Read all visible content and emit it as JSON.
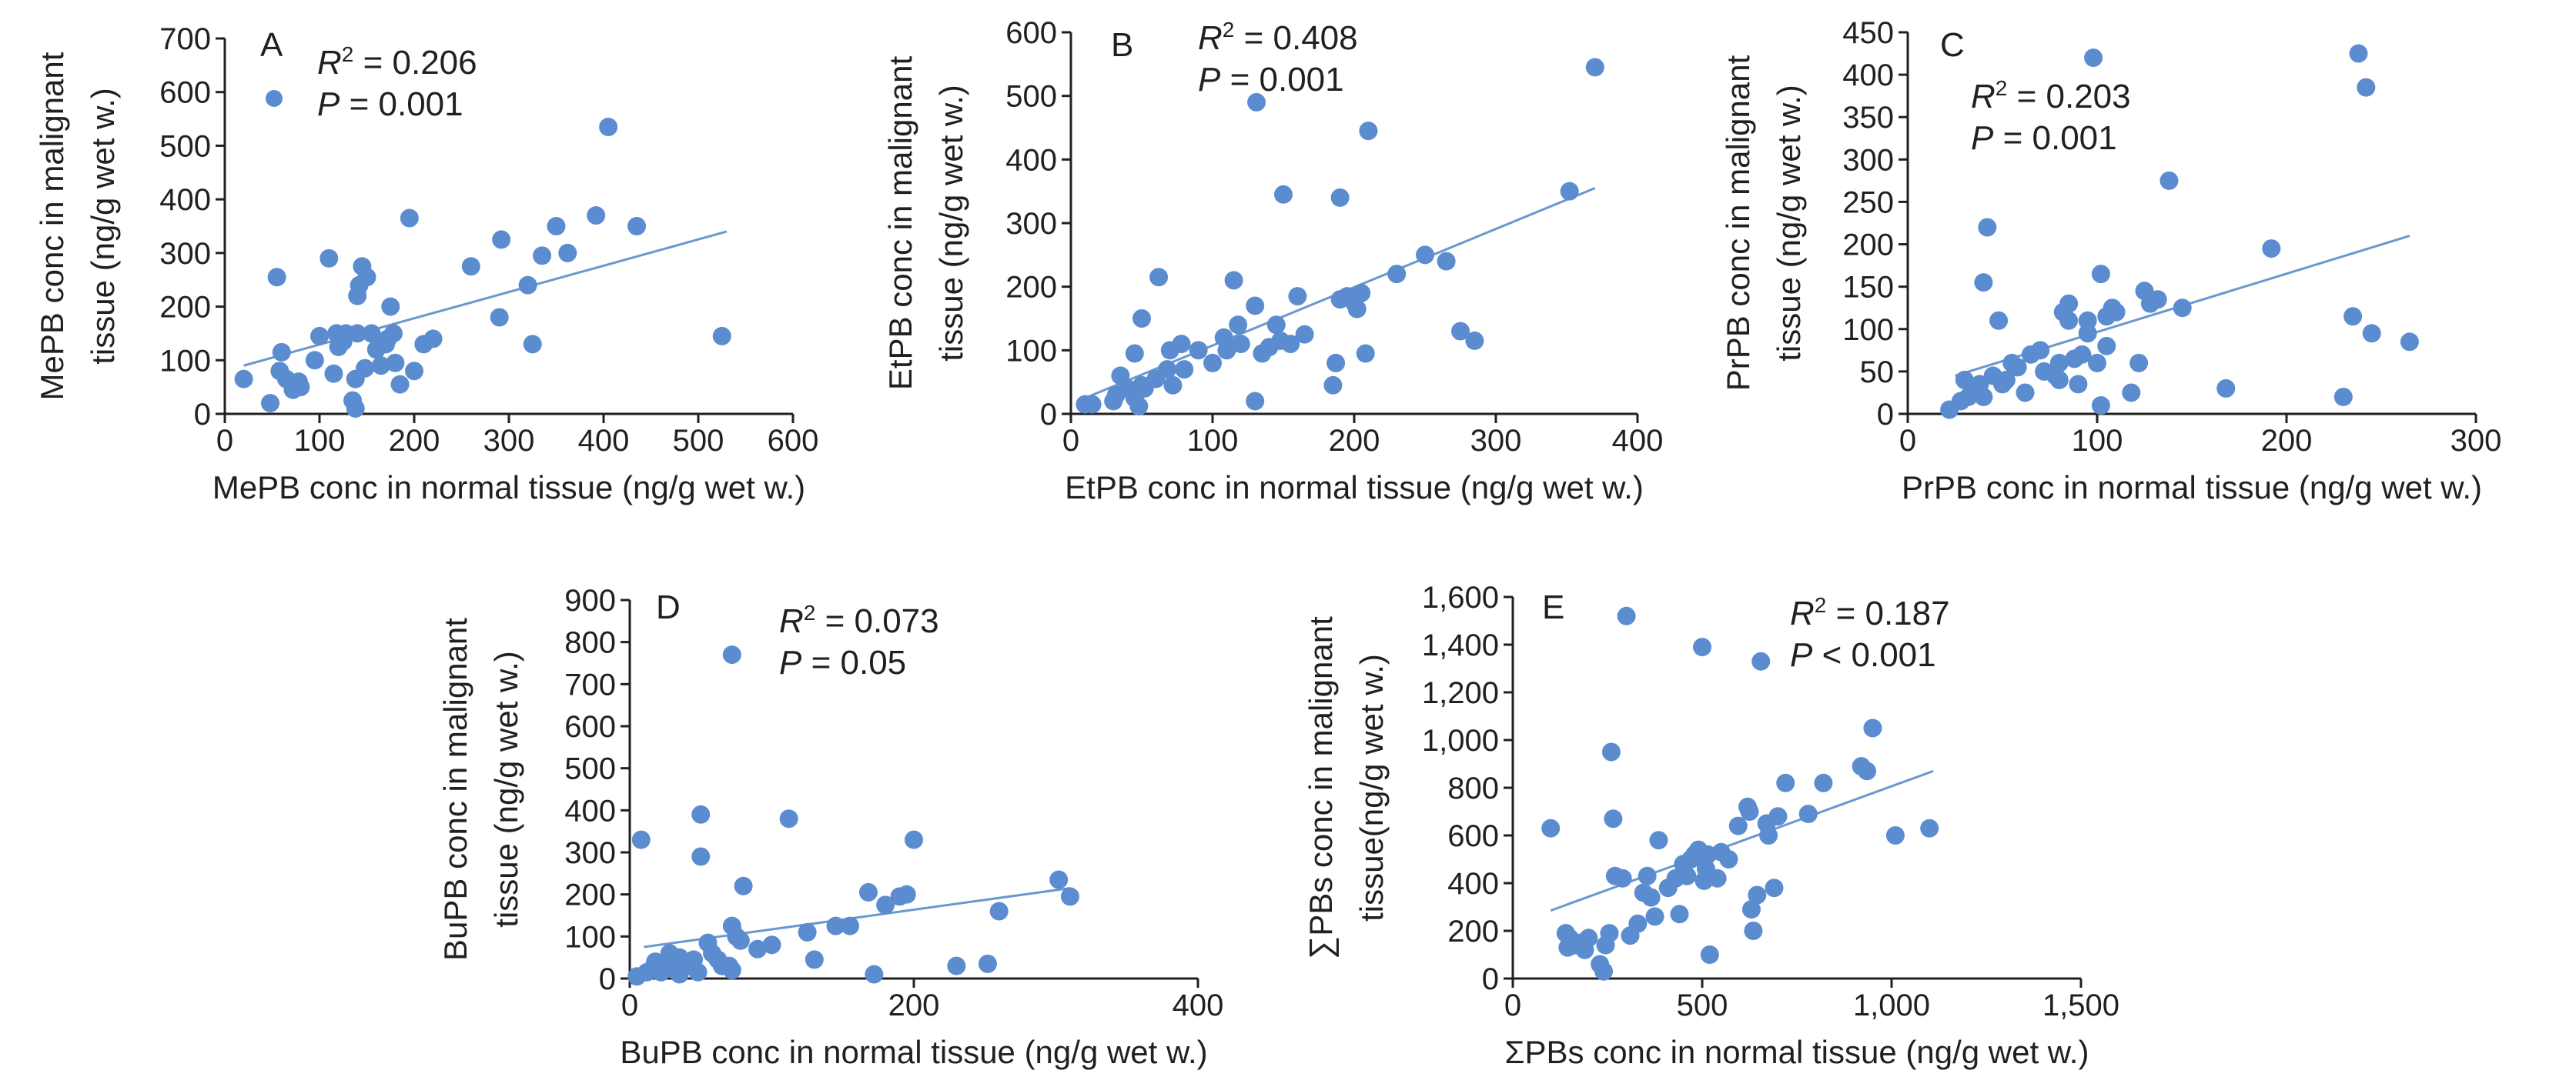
{
  "style": {
    "point_color": "#5b8ccf",
    "line_color": "#6a97cf",
    "axis_color": "#231f20"
  },
  "chart_data": [
    {
      "type": "scatter",
      "panel": "A",
      "xlabel": "MePB conc in normal tissue (ng/g wet w.)",
      "ylabel": [
        "MePB conc in malignant",
        "tissue (ng/g wet w.)"
      ],
      "xlim": [
        0,
        600
      ],
      "ylim": [
        0,
        700
      ],
      "xticks": [
        "0",
        "100",
        "200",
        "300",
        "400",
        "500",
        "600"
      ],
      "yticks": [
        "0",
        "100",
        "200",
        "300",
        "400",
        "500",
        "600",
        "700"
      ],
      "r2": "= 0.206",
      "p": "= 0.001",
      "legend_marker": true,
      "trend": [
        [
          20,
          90
        ],
        [
          530,
          340
        ]
      ],
      "points": [
        [
          20,
          65
        ],
        [
          48,
          20
        ],
        [
          55,
          255
        ],
        [
          58,
          80
        ],
        [
          60,
          115
        ],
        [
          65,
          65
        ],
        [
          72,
          45
        ],
        [
          78,
          60
        ],
        [
          80,
          50
        ],
        [
          95,
          100
        ],
        [
          100,
          145
        ],
        [
          110,
          290
        ],
        [
          115,
          75
        ],
        [
          118,
          150
        ],
        [
          120,
          125
        ],
        [
          125,
          135
        ],
        [
          128,
          150
        ],
        [
          135,
          25
        ],
        [
          138,
          10
        ],
        [
          138,
          65
        ],
        [
          140,
          150
        ],
        [
          140,
          220
        ],
        [
          142,
          240
        ],
        [
          145,
          275
        ],
        [
          148,
          85
        ],
        [
          150,
          255
        ],
        [
          155,
          150
        ],
        [
          160,
          120
        ],
        [
          165,
          90
        ],
        [
          170,
          130
        ],
        [
          172,
          140
        ],
        [
          175,
          200
        ],
        [
          178,
          150
        ],
        [
          180,
          95
        ],
        [
          185,
          55
        ],
        [
          195,
          365
        ],
        [
          200,
          80
        ],
        [
          210,
          130
        ],
        [
          220,
          140
        ],
        [
          260,
          275
        ],
        [
          290,
          180
        ],
        [
          292,
          325
        ],
        [
          320,
          240
        ],
        [
          325,
          130
        ],
        [
          335,
          295
        ],
        [
          350,
          350
        ],
        [
          362,
          300
        ],
        [
          392,
          370
        ],
        [
          405,
          535
        ],
        [
          435,
          350
        ],
        [
          525,
          145
        ]
      ]
    },
    {
      "type": "scatter",
      "panel": "B",
      "xlabel": "EtPB conc in normal tissue (ng/g wet w.)",
      "ylabel": [
        "EtPB conc in malignant",
        "tissue (ng/g wet w.)"
      ],
      "xlim": [
        0,
        400
      ],
      "ylim": [
        0,
        600
      ],
      "xticks": [
        "0",
        "100",
        "200",
        "300",
        "400"
      ],
      "yticks": [
        "0",
        "100",
        "200",
        "300",
        "400",
        "500",
        "600"
      ],
      "r2": "= 0.408",
      "p": "= 0.001",
      "legend_marker": false,
      "trend": [
        [
          10,
          25
        ],
        [
          370,
          355
        ]
      ],
      "points": [
        [
          10,
          15
        ],
        [
          15,
          15
        ],
        [
          30,
          20
        ],
        [
          32,
          30
        ],
        [
          35,
          60
        ],
        [
          40,
          40
        ],
        [
          45,
          25
        ],
        [
          45,
          95
        ],
        [
          48,
          12
        ],
        [
          50,
          45
        ],
        [
          50,
          150
        ],
        [
          52,
          40
        ],
        [
          60,
          55
        ],
        [
          62,
          215
        ],
        [
          68,
          70
        ],
        [
          70,
          100
        ],
        [
          72,
          45
        ],
        [
          78,
          110
        ],
        [
          80,
          70
        ],
        [
          90,
          100
        ],
        [
          100,
          80
        ],
        [
          108,
          120
        ],
        [
          110,
          100
        ],
        [
          115,
          210
        ],
        [
          118,
          140
        ],
        [
          120,
          110
        ],
        [
          130,
          170
        ],
        [
          130,
          20
        ],
        [
          131,
          490
        ],
        [
          135,
          95
        ],
        [
          140,
          105
        ],
        [
          145,
          140
        ],
        [
          148,
          115
        ],
        [
          150,
          345
        ],
        [
          155,
          110
        ],
        [
          160,
          185
        ],
        [
          165,
          125
        ],
        [
          185,
          45
        ],
        [
          187,
          80
        ],
        [
          190,
          180
        ],
        [
          190,
          340
        ],
        [
          195,
          185
        ],
        [
          200,
          175
        ],
        [
          202,
          165
        ],
        [
          205,
          190
        ],
        [
          208,
          95
        ],
        [
          210,
          445
        ],
        [
          230,
          220
        ],
        [
          250,
          250
        ],
        [
          265,
          240
        ],
        [
          275,
          130
        ],
        [
          285,
          115
        ],
        [
          352,
          350
        ],
        [
          370,
          545
        ]
      ]
    },
    {
      "type": "scatter",
      "panel": "C",
      "xlabel": "PrPB conc in normal  tissue (ng/g wet w.)",
      "ylabel": [
        "PrPB conc in malignant",
        "tissue (ng/g wet w.)"
      ],
      "xlim": [
        0,
        300
      ],
      "ylim": [
        0,
        450
      ],
      "xticks": [
        "0",
        "100",
        "200",
        "300"
      ],
      "yticks": [
        "0",
        "50",
        "100",
        "150",
        "200",
        "250",
        "300",
        "350",
        "400",
        "450"
      ],
      "r2": "= 0.203",
      "p": "= 0.001",
      "legend_marker": false,
      "trend": [
        [
          25,
          45
        ],
        [
          265,
          210
        ]
      ],
      "points": [
        [
          22,
          5
        ],
        [
          28,
          15
        ],
        [
          30,
          40
        ],
        [
          32,
          20
        ],
        [
          35,
          25
        ],
        [
          38,
          35
        ],
        [
          40,
          155
        ],
        [
          40,
          20
        ],
        [
          42,
          220
        ],
        [
          45,
          45
        ],
        [
          48,
          110
        ],
        [
          50,
          35
        ],
        [
          52,
          40
        ],
        [
          55,
          60
        ],
        [
          58,
          55
        ],
        [
          62,
          25
        ],
        [
          65,
          70
        ],
        [
          70,
          75
        ],
        [
          72,
          50
        ],
        [
          78,
          45
        ],
        [
          80,
          40
        ],
        [
          80,
          60
        ],
        [
          82,
          120
        ],
        [
          85,
          110
        ],
        [
          85,
          130
        ],
        [
          88,
          65
        ],
        [
          90,
          35
        ],
        [
          92,
          70
        ],
        [
          95,
          110
        ],
        [
          95,
          95
        ],
        [
          98,
          420
        ],
        [
          100,
          60
        ],
        [
          102,
          10
        ],
        [
          102,
          165
        ],
        [
          105,
          115
        ],
        [
          105,
          80
        ],
        [
          108,
          125
        ],
        [
          110,
          120
        ],
        [
          118,
          25
        ],
        [
          122,
          60
        ],
        [
          125,
          145
        ],
        [
          128,
          130
        ],
        [
          132,
          135
        ],
        [
          138,
          275
        ],
        [
          145,
          125
        ],
        [
          168,
          30
        ],
        [
          192,
          195
        ],
        [
          230,
          20
        ],
        [
          235,
          115
        ],
        [
          238,
          425
        ],
        [
          242,
          385
        ],
        [
          245,
          95
        ],
        [
          265,
          85
        ]
      ]
    },
    {
      "type": "scatter",
      "panel": "D",
      "xlabel": "BuPB conc in normal tissue (ng/g wet w.)",
      "ylabel": [
        "BuPB conc in malignant",
        "tissue (ng/g wet w.)"
      ],
      "xlim": [
        0,
        400
      ],
      "ylim": [
        0,
        900
      ],
      "xticks": [
        "0",
        "200",
        "400"
      ],
      "yticks": [
        "0",
        "100",
        "200",
        "300",
        "400",
        "500",
        "600",
        "700",
        "800",
        "900"
      ],
      "r2": "= 0.073",
      "p": "= 0.05",
      "legend_marker": false,
      "trend": [
        [
          10,
          75
        ],
        [
          310,
          215
        ]
      ],
      "points": [
        [
          5,
          5
        ],
        [
          8,
          330
        ],
        [
          12,
          15
        ],
        [
          15,
          20
        ],
        [
          18,
          40
        ],
        [
          20,
          30
        ],
        [
          22,
          15
        ],
        [
          25,
          35
        ],
        [
          28,
          60
        ],
        [
          30,
          45
        ],
        [
          32,
          20
        ],
        [
          35,
          10
        ],
        [
          35,
          50
        ],
        [
          38,
          40
        ],
        [
          40,
          30
        ],
        [
          45,
          45
        ],
        [
          48,
          15
        ],
        [
          50,
          290
        ],
        [
          50,
          390
        ],
        [
          55,
          85
        ],
        [
          58,
          60
        ],
        [
          62,
          45
        ],
        [
          65,
          30
        ],
        [
          70,
          30
        ],
        [
          72,
          20
        ],
        [
          72,
          770
        ],
        [
          72,
          125
        ],
        [
          75,
          100
        ],
        [
          78,
          90
        ],
        [
          80,
          220
        ],
        [
          90,
          70
        ],
        [
          100,
          80
        ],
        [
          112,
          380
        ],
        [
          125,
          110
        ],
        [
          130,
          45
        ],
        [
          145,
          125
        ],
        [
          155,
          125
        ],
        [
          168,
          205
        ],
        [
          172,
          10
        ],
        [
          180,
          175
        ],
        [
          190,
          195
        ],
        [
          195,
          200
        ],
        [
          200,
          330
        ],
        [
          230,
          30
        ],
        [
          252,
          35
        ],
        [
          260,
          160
        ],
        [
          302,
          235
        ],
        [
          310,
          195
        ]
      ]
    },
    {
      "type": "scatter",
      "panel": "E",
      "xlabel": "ΣPBs conc in normal tissue (ng/g wet w.)",
      "ylabel": [
        "∑PBs conc in malignant",
        "tissue(ng/g wet w.)"
      ],
      "xlim": [
        0,
        1500
      ],
      "ylim": [
        0,
        1600
      ],
      "xticks": [
        "0",
        "500",
        "1,000",
        "1,500"
      ],
      "yticks": [
        "0",
        "200",
        "400",
        "600",
        "800",
        "1,000",
        "1,200",
        "1,400",
        "1,600"
      ],
      "r2": "= 0.187",
      "p": "< 0.001",
      "legend_marker": false,
      "trend": [
        [
          100,
          285
        ],
        [
          1110,
          870
        ]
      ],
      "points": [
        [
          100,
          630
        ],
        [
          140,
          190
        ],
        [
          145,
          130
        ],
        [
          150,
          170
        ],
        [
          165,
          140
        ],
        [
          180,
          150
        ],
        [
          190,
          120
        ],
        [
          200,
          170
        ],
        [
          230,
          60
        ],
        [
          240,
          30
        ],
        [
          245,
          140
        ],
        [
          255,
          190
        ],
        [
          260,
          950
        ],
        [
          265,
          670
        ],
        [
          270,
          430
        ],
        [
          290,
          420
        ],
        [
          300,
          1520
        ],
        [
          310,
          180
        ],
        [
          330,
          230
        ],
        [
          345,
          360
        ],
        [
          355,
          430
        ],
        [
          365,
          340
        ],
        [
          375,
          260
        ],
        [
          385,
          580
        ],
        [
          410,
          380
        ],
        [
          430,
          420
        ],
        [
          440,
          270
        ],
        [
          450,
          480
        ],
        [
          460,
          430
        ],
        [
          470,
          500
        ],
        [
          480,
          520
        ],
        [
          490,
          540
        ],
        [
          500,
          1390
        ],
        [
          505,
          410
        ],
        [
          510,
          460
        ],
        [
          515,
          520
        ],
        [
          520,
          100
        ],
        [
          540,
          420
        ],
        [
          550,
          530
        ],
        [
          570,
          500
        ],
        [
          595,
          640
        ],
        [
          620,
          720
        ],
        [
          625,
          700
        ],
        [
          630,
          290
        ],
        [
          635,
          200
        ],
        [
          645,
          350
        ],
        [
          655,
          1330
        ],
        [
          670,
          650
        ],
        [
          675,
          600
        ],
        [
          690,
          380
        ],
        [
          700,
          680
        ],
        [
          720,
          820
        ],
        [
          780,
          690
        ],
        [
          820,
          820
        ],
        [
          920,
          890
        ],
        [
          935,
          870
        ],
        [
          950,
          1050
        ],
        [
          1010,
          600
        ],
        [
          1100,
          630
        ]
      ]
    }
  ]
}
